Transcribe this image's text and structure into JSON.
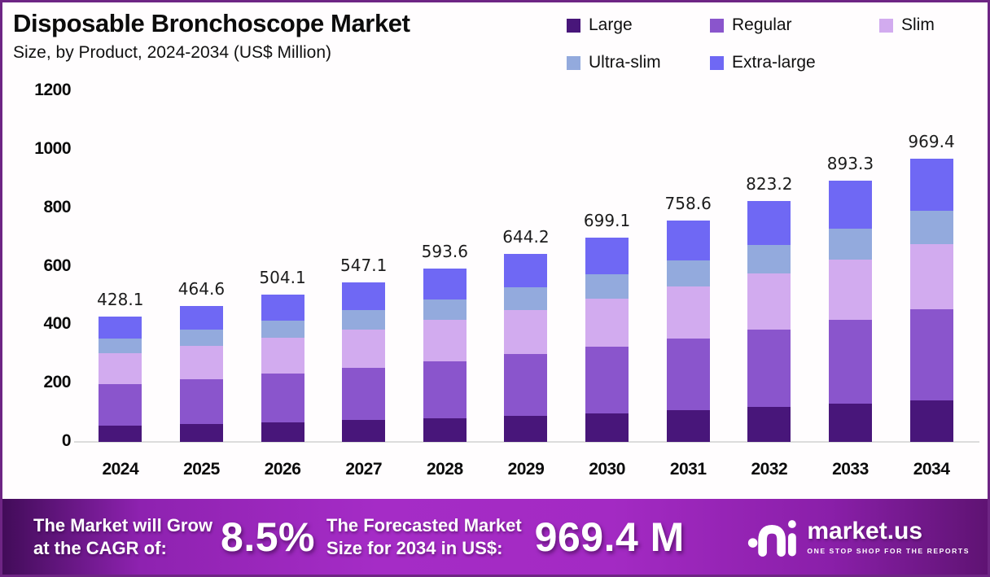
{
  "header": {
    "title": "Disposable Bronchoscope Market",
    "subtitle": "Size, by Product, 2024-2034 (US$ Million)"
  },
  "legend": [
    {
      "label": "Large",
      "color": "#48167a"
    },
    {
      "label": "Regular",
      "color": "#8a55cc"
    },
    {
      "label": "Slim",
      "color": "#d2abef"
    },
    {
      "label": "Ultra-slim",
      "color": "#93aadd"
    },
    {
      "label": "Extra-large",
      "color": "#6f68f4"
    }
  ],
  "chart_data": {
    "type": "bar",
    "stacked": true,
    "title": "Disposable Bronchoscope Market Size, by Product, 2024-2034 (US$ Million)",
    "categories": [
      2024,
      2025,
      2026,
      2027,
      2028,
      2029,
      2030,
      2031,
      2032,
      2033,
      2034
    ],
    "series": [
      {
        "name": "Large",
        "color": "#48167a",
        "values": [
          56.5,
          62.0,
          68.1,
          74.7,
          81.9,
          89.9,
          98.6,
          108.1,
          118.5,
          130.0,
          142.5
        ]
      },
      {
        "name": "Regular",
        "color": "#8a55cc",
        "values": [
          141.7,
          153.3,
          165.8,
          179.4,
          194.1,
          210.0,
          227.2,
          245.8,
          265.9,
          287.6,
          311.2
        ]
      },
      {
        "name": "Slim",
        "color": "#d2abef",
        "values": [
          104.5,
          112.7,
          121.5,
          131.0,
          141.3,
          152.4,
          164.3,
          177.1,
          191.0,
          205.9,
          222.5
        ]
      },
      {
        "name": "Ultra-slim",
        "color": "#93aadd",
        "values": [
          50.9,
          55.2,
          59.9,
          64.9,
          70.4,
          76.3,
          82.8,
          89.7,
          97.3,
          105.5,
          114.4
        ]
      },
      {
        "name": "Extra-large",
        "color": "#6f68f4",
        "values": [
          74.5,
          81.4,
          88.8,
          97.1,
          105.9,
          115.6,
          126.2,
          137.9,
          150.5,
          164.3,
          178.8
        ]
      }
    ],
    "totals": [
      428.1,
      464.6,
      504.1,
      547.1,
      593.6,
      644.2,
      699.1,
      758.6,
      823.2,
      893.3,
      969.4
    ],
    "total_labels": [
      "428.1",
      "464.6",
      "504.1",
      "547.1",
      "593.6",
      "644.2",
      "699.1",
      "758.6",
      "823.2",
      "893.3",
      "969.4"
    ],
    "xlabel": "",
    "ylabel": "",
    "ylim": [
      0,
      1200
    ],
    "yticks": [
      0,
      200,
      400,
      600,
      800,
      1000,
      1200
    ],
    "grid": false,
    "legend_position": "top-right",
    "note": "segment values estimated from bar proportions; totals are labeled on chart"
  },
  "banner": {
    "cagr_label_line1": "The Market will Grow",
    "cagr_label_line2": "at the CAGR of:",
    "cagr_value": "8.5%",
    "forecast_label_line1": "The Forecasted Market",
    "forecast_label_line2": "Size for 2034 in US$:",
    "forecast_value": "969.4 M",
    "brand": "market.us",
    "brand_tagline": "ONE STOP SHOP FOR THE REPORTS"
  },
  "colors": {
    "frame_border": "#6e2584",
    "background": "#fffdfe",
    "axis_baseline": "#dcdcdc",
    "text": "#0c0c0c",
    "banner_gradient_left": "#420c59",
    "banner_gradient_mid": "#a52cc6",
    "banner_gradient_right": "#5f1373",
    "banner_text": "#ffffff"
  }
}
